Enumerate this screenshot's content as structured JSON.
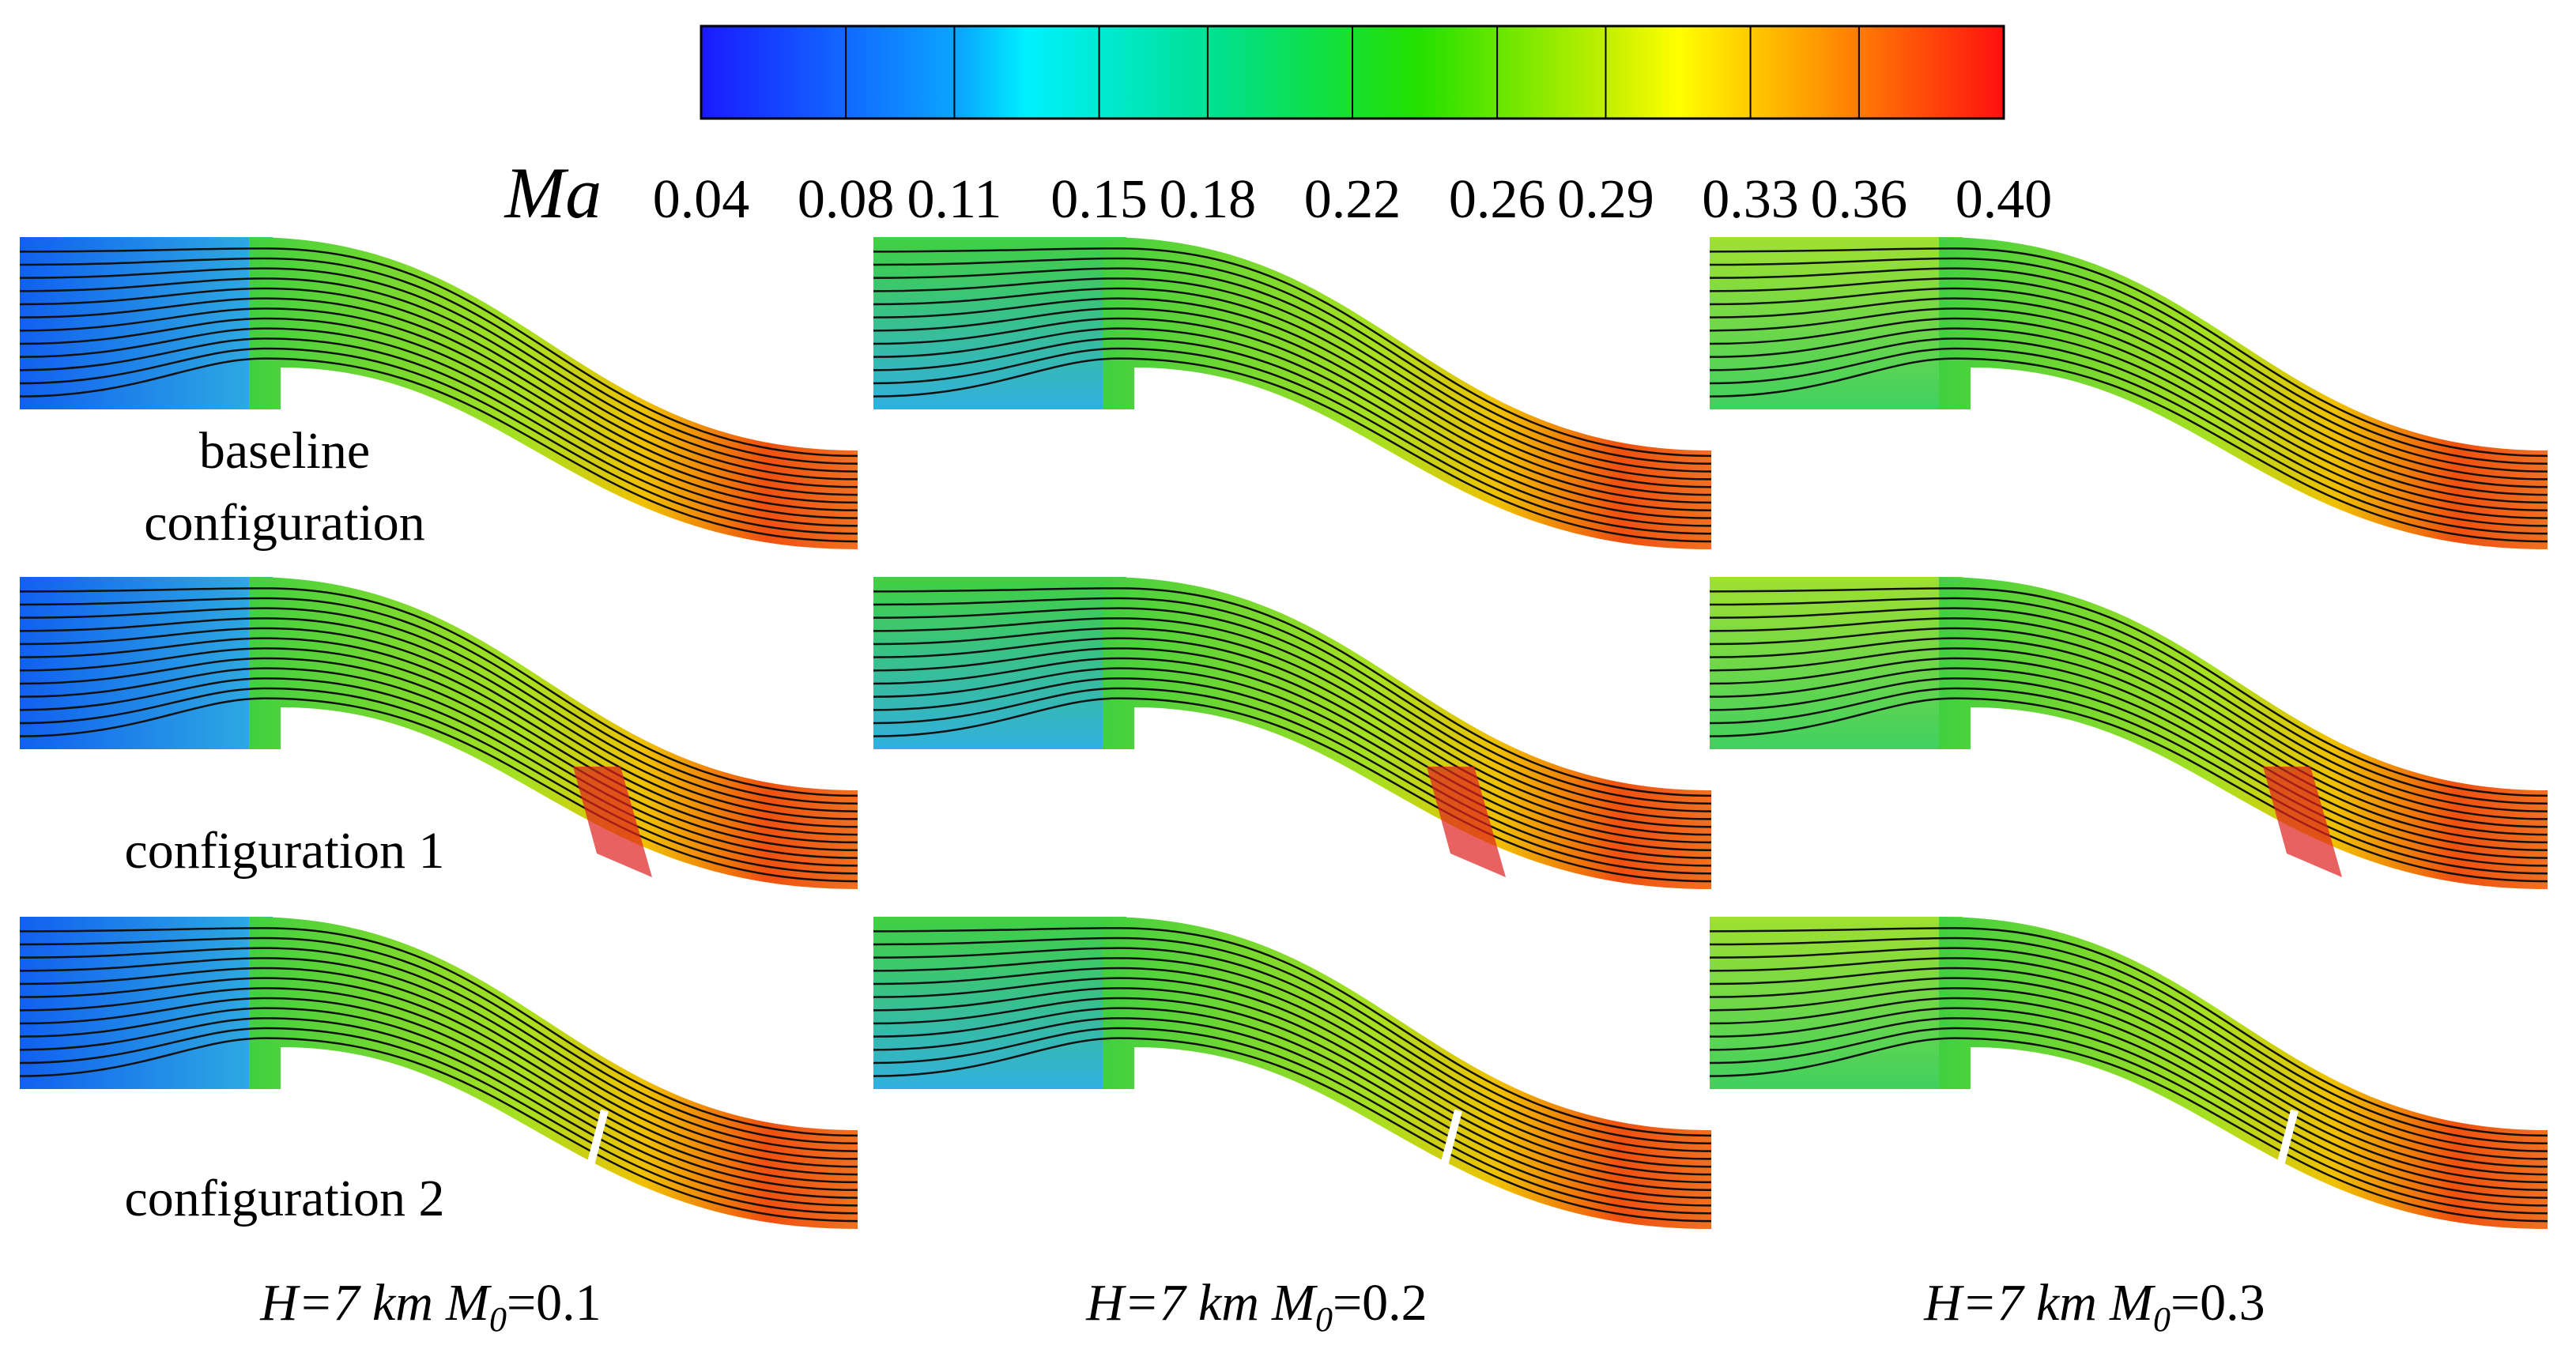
{
  "colorbar": {
    "label": "Ma",
    "ticks": [
      0.04,
      0.08,
      0.11,
      0.15,
      0.18,
      0.22,
      0.26,
      0.29,
      0.33,
      0.36,
      {
        "value": 0.4,
        "label": "0.40"
      }
    ]
  },
  "rows": [
    {
      "label_lines": [
        "baseline",
        "configuration"
      ]
    },
    {
      "label_lines": [
        "configuration 1"
      ]
    },
    {
      "label_lines": [
        "configuration 2"
      ]
    }
  ],
  "columns": [
    {
      "altitude": "H=7 km",
      "mach_symbol": "M",
      "mach_subscript": "0",
      "mach_value": "=0.1"
    },
    {
      "altitude": "H=7 km",
      "mach_symbol": "M",
      "mach_subscript": "0",
      "mach_value": "=0.2"
    },
    {
      "altitude": "H=7 km",
      "mach_symbol": "M",
      "mach_subscript": "0",
      "mach_value": "=0.3"
    }
  ]
}
